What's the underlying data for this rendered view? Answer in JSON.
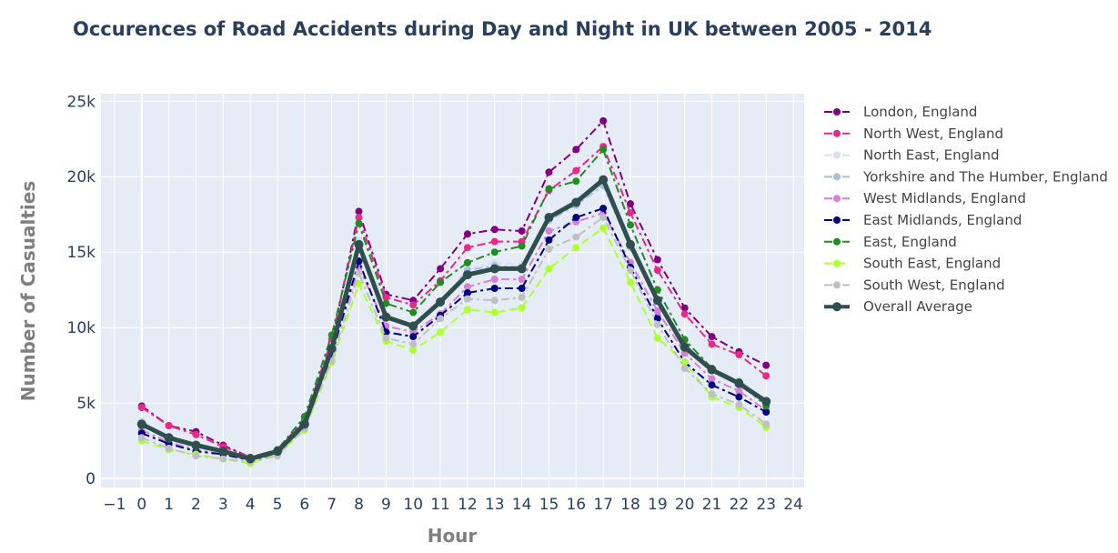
{
  "chart_data": {
    "type": "line",
    "title": "Occurences of Road Accidents during Day and Night in UK between 2005 - 2014",
    "xlabel": "Hour",
    "ylabel": "Number of Casualties",
    "xlim": [
      -1.5,
      24.4
    ],
    "ylim": [
      -600,
      25500
    ],
    "xticks": [
      -1,
      0,
      1,
      2,
      3,
      4,
      5,
      6,
      7,
      8,
      9,
      10,
      11,
      12,
      13,
      14,
      15,
      16,
      17,
      18,
      19,
      20,
      21,
      22,
      23,
      24
    ],
    "xtick_labels": [
      "−1",
      "0",
      "1",
      "2",
      "3",
      "4",
      "5",
      "6",
      "7",
      "8",
      "9",
      "10",
      "11",
      "12",
      "13",
      "14",
      "15",
      "16",
      "17",
      "18",
      "19",
      "20",
      "21",
      "22",
      "23",
      "24"
    ],
    "yticks": [
      0,
      5000,
      10000,
      15000,
      20000,
      25000
    ],
    "ytick_labels": [
      "0",
      "5k",
      "10k",
      "15k",
      "20k",
      "25k"
    ],
    "grid": true,
    "legend_position": "right",
    "plot_background": "#e5ecf6",
    "x": [
      0,
      1,
      2,
      3,
      4,
      5,
      6,
      7,
      8,
      9,
      10,
      11,
      12,
      13,
      14,
      15,
      16,
      17,
      18,
      19,
      20,
      21,
      22,
      23
    ],
    "series": [
      {
        "name": "London, England",
        "color": "#800080",
        "dash": "dashdot",
        "width": 2,
        "values": [
          4800,
          3500,
          3100,
          2200,
          1400,
          1900,
          3800,
          9000,
          17700,
          12200,
          11800,
          13900,
          16200,
          16500,
          16400,
          20300,
          21800,
          23700,
          18200,
          14500,
          11300,
          9400,
          8400,
          7500
        ]
      },
      {
        "name": "North West, England",
        "color": "#e7298a",
        "dash": "dashdot",
        "width": 2,
        "values": [
          4700,
          3500,
          2900,
          2100,
          1400,
          1900,
          3900,
          9200,
          17300,
          12000,
          11500,
          13100,
          15300,
          15700,
          15700,
          19100,
          20400,
          22000,
          17600,
          13800,
          10900,
          8900,
          8200,
          6800
        ]
      },
      {
        "name": "North East, England",
        "color": "#dcdcf5",
        "dash": "dashdot",
        "width": 2,
        "values": [
          3800,
          2800,
          2200,
          1800,
          1400,
          1800,
          3700,
          8800,
          15800,
          10700,
          10200,
          11600,
          13900,
          14300,
          14200,
          17300,
          18200,
          19500,
          15400,
          11900,
          9000,
          7300,
          6500,
          5200
        ]
      },
      {
        "name": "Yorkshire and The Humber, England",
        "color": "#a6c1e0",
        "dash": "dashdot",
        "width": 2,
        "values": [
          3700,
          2700,
          2200,
          1800,
          1400,
          1800,
          3600,
          8700,
          15600,
          10600,
          10100,
          11600,
          13800,
          14100,
          14000,
          17100,
          18100,
          19400,
          15300,
          11800,
          8900,
          7200,
          6400,
          5100
        ]
      },
      {
        "name": "West Midlands, England",
        "color": "#d57fd5",
        "dash": "dashdot",
        "width": 2,
        "values": [
          3200,
          2400,
          1900,
          1600,
          1200,
          1700,
          3500,
          8300,
          14000,
          10100,
          9700,
          10900,
          12700,
          13200,
          13200,
          16400,
          17000,
          17600,
          14300,
          11100,
          8300,
          6600,
          5800,
          4500
        ]
      },
      {
        "name": "East Midlands, England",
        "color": "#000080",
        "dash": "dashdot",
        "width": 2,
        "values": [
          3000,
          2300,
          1800,
          1600,
          1200,
          1600,
          3500,
          8200,
          14400,
          9700,
          9400,
          10800,
          12300,
          12600,
          12600,
          15800,
          17300,
          17900,
          14000,
          10600,
          7700,
          6200,
          5400,
          4400
        ]
      },
      {
        "name": "East, England",
        "color": "#228b22",
        "dash": "dashdot",
        "width": 2,
        "values": [
          3500,
          2600,
          2100,
          1800,
          1400,
          1900,
          4100,
          9500,
          16900,
          11600,
          11000,
          13000,
          14300,
          15000,
          15400,
          19200,
          19700,
          21800,
          16800,
          12500,
          9200,
          7300,
          6400,
          4800
        ]
      },
      {
        "name": "South East, England",
        "color": "#adff2f",
        "dash": "dash",
        "width": 2,
        "values": [
          2500,
          1900,
          1600,
          1300,
          1000,
          1600,
          3200,
          7700,
          12900,
          9100,
          8500,
          9700,
          11200,
          11000,
          11300,
          13900,
          15300,
          16600,
          13000,
          9300,
          7700,
          5400,
          4700,
          3400
        ]
      },
      {
        "name": "South West, England",
        "color": "#c0c0c0",
        "dash": "dashdot",
        "width": 2,
        "values": [
          2700,
          2000,
          1500,
          1300,
          1100,
          1500,
          3300,
          7800,
          13600,
          9300,
          8900,
          10600,
          11900,
          11800,
          12000,
          15200,
          16000,
          17300,
          13800,
          10200,
          7300,
          5600,
          4900,
          3600
        ]
      },
      {
        "name": "Overall Average",
        "color": "#2f4f4f",
        "dash": "solid",
        "width": 5,
        "values": [
          3600,
          2700,
          2200,
          1800,
          1300,
          1800,
          3600,
          8600,
          15500,
          10700,
          10100,
          11700,
          13500,
          13900,
          13900,
          17300,
          18300,
          19800,
          15500,
          11800,
          8700,
          7200,
          6300,
          5100
        ]
      }
    ]
  }
}
